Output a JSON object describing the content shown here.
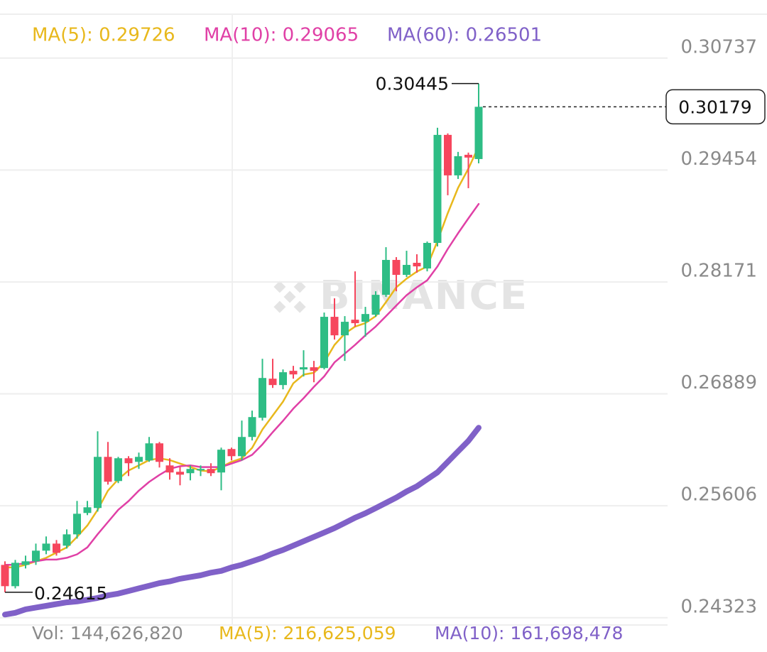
{
  "chart_data": {
    "type": "candlestick",
    "watermark": "BINANCE",
    "ylim": [
      0.2424,
      0.3124
    ],
    "yticks": [
      0.24323,
      0.25606,
      0.26889,
      0.28171,
      0.29454,
      0.30737
    ],
    "grid": true,
    "candles": {
      "up_color": "#2ebd85",
      "down_color": "#f6465d",
      "open": [
        0.24929,
        0.24685,
        0.24929,
        0.2497,
        0.25092,
        0.25173,
        0.25149,
        0.25279,
        0.25524,
        0.25581,
        0.26167,
        0.2589,
        0.26151,
        0.2611,
        0.26126,
        0.26322,
        0.26069,
        0.25996,
        0.2598,
        0.26012,
        0.26029,
        0.25988,
        0.26257,
        0.26175,
        0.26395,
        0.26615,
        0.27063,
        0.2699,
        0.27153,
        0.27169,
        0.27194,
        0.27185,
        0.27772,
        0.2756,
        0.27739,
        0.27715,
        0.27796,
        0.28024,
        0.28424,
        0.28253,
        0.28391,
        0.28326,
        0.28619,
        0.29857,
        0.29393,
        0.29629,
        0.2958
      ],
      "high": [
        0.2497,
        0.24986,
        0.25035,
        0.25173,
        0.25255,
        0.25214,
        0.25336,
        0.25662,
        0.25662,
        0.2646,
        0.26338,
        0.26167,
        0.26175,
        0.26216,
        0.26395,
        0.26338,
        0.26151,
        0.26053,
        0.26069,
        0.26069,
        0.26094,
        0.26273,
        0.26273,
        0.26583,
        0.26697,
        0.27291,
        0.27291,
        0.27169,
        0.2721,
        0.27389,
        0.27267,
        0.27821,
        0.27984,
        0.2778,
        0.28293,
        0.27886,
        0.28065,
        0.2857,
        0.28456,
        0.28529,
        0.28489,
        0.28635,
        0.29939,
        0.29874,
        0.29662,
        0.29654,
        0.30445
      ],
      "low": [
        0.24615,
        0.2466,
        0.24888,
        0.24929,
        0.25051,
        0.25035,
        0.25116,
        0.2523,
        0.25499,
        0.2554,
        0.25849,
        0.25866,
        0.25947,
        0.26029,
        0.2611,
        0.26045,
        0.25906,
        0.25841,
        0.25898,
        0.25947,
        0.25947,
        0.25784,
        0.26126,
        0.26126,
        0.26355,
        0.26583,
        0.26957,
        0.26941,
        0.27063,
        0.27088,
        0.27022,
        0.27169,
        0.27511,
        0.27267,
        0.27658,
        0.27544,
        0.27772,
        0.28,
        0.28065,
        0.28228,
        0.28277,
        0.28293,
        0.28578,
        0.29165,
        0.29352,
        0.29246,
        0.29531
      ],
      "close": [
        0.24685,
        0.24953,
        0.2497,
        0.25092,
        0.25173,
        0.25067,
        0.25279,
        0.25515,
        0.25589,
        0.26167,
        0.25882,
        0.26151,
        0.26094,
        0.26167,
        0.26322,
        0.2611,
        0.25988,
        0.25963,
        0.26029,
        0.26029,
        0.2598,
        0.26249,
        0.26175,
        0.26395,
        0.26623,
        0.27071,
        0.2699,
        0.27137,
        0.27112,
        0.27194,
        0.27153,
        0.27772,
        0.2756,
        0.27715,
        0.27699,
        0.27804,
        0.28024,
        0.28424,
        0.28253,
        0.28367,
        0.2835,
        0.28619,
        0.29857,
        0.29393,
        0.29613,
        0.29597,
        0.30179
      ]
    },
    "series": [
      {
        "name": "MA(5): 0.29726",
        "color": "#e8b81c",
        "width": 2.5,
        "values": [
          0.249,
          0.249,
          0.2493,
          0.2497,
          0.2501,
          0.2507,
          0.2513,
          0.2525,
          0.2538,
          0.2556,
          0.2578,
          0.2591,
          0.2601,
          0.2607,
          0.2613,
          0.2615,
          0.2613,
          0.2609,
          0.2605,
          0.2601,
          0.26,
          0.2605,
          0.2611,
          0.2615,
          0.2627,
          0.2648,
          0.2664,
          0.268,
          0.2701,
          0.2711,
          0.2713,
          0.2725,
          0.2745,
          0.2758,
          0.2766,
          0.277,
          0.2778,
          0.2794,
          0.2811,
          0.2821,
          0.2829,
          0.2835,
          0.2864,
          0.2896,
          0.2925,
          0.2947,
          0.29726
        ]
      },
      {
        "name": "MA(10): 0.29065",
        "color": "#e040a6",
        "width": 2.5,
        "values": [
          0.2493,
          0.2493,
          0.2495,
          0.2497,
          0.2499,
          0.2499,
          0.2501,
          0.2505,
          0.2513,
          0.2528,
          0.2542,
          0.2556,
          0.2566,
          0.2578,
          0.2588,
          0.2596,
          0.2603,
          0.2606,
          0.2607,
          0.2605,
          0.2605,
          0.2605,
          0.2609,
          0.2613,
          0.2619,
          0.2631,
          0.2645,
          0.2658,
          0.2672,
          0.2684,
          0.2697,
          0.2709,
          0.2725,
          0.2735,
          0.2745,
          0.2756,
          0.2766,
          0.2778,
          0.279,
          0.2802,
          0.2811,
          0.2819,
          0.2835,
          0.2855,
          0.2873,
          0.289,
          0.29065
        ]
      },
      {
        "name": "MA(60): 0.26501",
        "color": "#8061c8",
        "width": 8,
        "values": [
          0.2436,
          0.2438,
          0.2442,
          0.2444,
          0.2446,
          0.2448,
          0.245,
          0.2451,
          0.2453,
          0.2455,
          0.2458,
          0.246,
          0.2463,
          0.2466,
          0.2469,
          0.2472,
          0.2474,
          0.2477,
          0.2479,
          0.2481,
          0.2484,
          0.2486,
          0.249,
          0.2493,
          0.2497,
          0.2501,
          0.2506,
          0.251,
          0.2515,
          0.252,
          0.2525,
          0.253,
          0.2535,
          0.2541,
          0.2547,
          0.2552,
          0.2558,
          0.2564,
          0.257,
          0.2577,
          0.2583,
          0.2591,
          0.2599,
          0.2611,
          0.2623,
          0.2635,
          0.26501
        ]
      }
    ],
    "volume_labels": [
      {
        "text": "Vol: 144,626,820",
        "color": "#8a8a8a"
      },
      {
        "text": "MA(5): 216,625,059",
        "color": "#e8b81c"
      },
      {
        "text": "MA(10): 161,698,478",
        "color": "#8061c8"
      }
    ]
  }
}
